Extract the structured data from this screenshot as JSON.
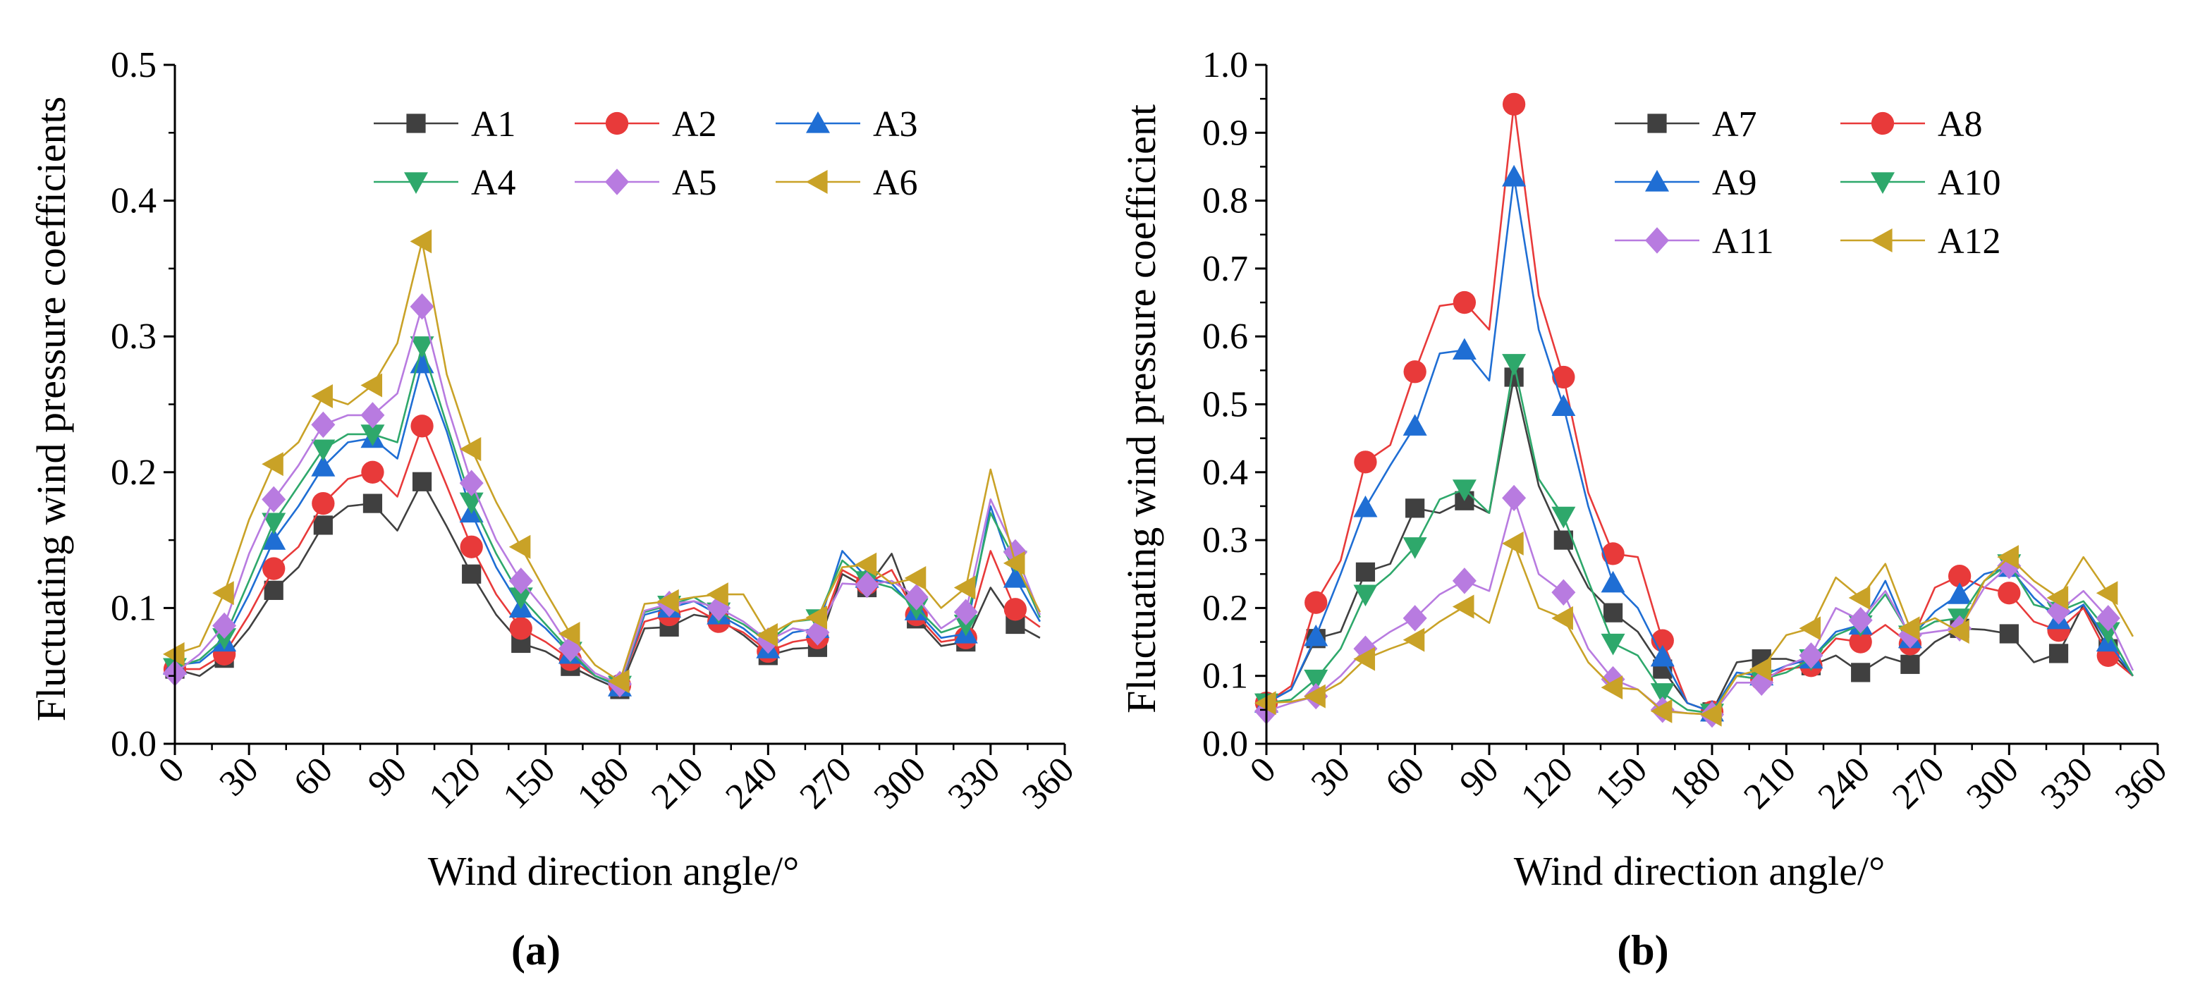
{
  "chart_data": [
    {
      "type": "line",
      "panel_label": "(a)",
      "xlabel": "Wind direction angle/°",
      "ylabel": "Fluctuating wind pressure coefficients",
      "xlim": [
        0,
        360
      ],
      "ylim": [
        0,
        0.5
      ],
      "xticks": [
        0,
        30,
        60,
        90,
        120,
        150,
        180,
        210,
        240,
        270,
        300,
        330,
        360
      ],
      "xtick_labels": [
        "0",
        "30",
        "60",
        "90",
        "120",
        "150",
        "180",
        "210",
        "240",
        "270",
        "300",
        "330",
        "360"
      ],
      "yticks": [
        0.0,
        0.1,
        0.2,
        0.3,
        0.4,
        0.5
      ],
      "ytick_labels": [
        "0.0",
        "0.1",
        "0.2",
        "0.3",
        "0.4",
        "0.5"
      ],
      "x": [
        0,
        10,
        20,
        30,
        40,
        50,
        60,
        70,
        80,
        90,
        100,
        110,
        120,
        130,
        140,
        150,
        160,
        170,
        180,
        190,
        200,
        210,
        220,
        230,
        240,
        250,
        260,
        270,
        280,
        290,
        300,
        310,
        320,
        330,
        340,
        350
      ],
      "marker_every": 2,
      "legend": {
        "placement": "top-right",
        "columns": 3
      },
      "series": [
        {
          "name": "A1",
          "color": "#404040",
          "marker": "square",
          "values": [
            0.055,
            0.05,
            0.063,
            0.085,
            0.113,
            0.13,
            0.161,
            0.175,
            0.177,
            0.157,
            0.193,
            0.16,
            0.125,
            0.095,
            0.074,
            0.068,
            0.057,
            0.048,
            0.04,
            0.085,
            0.086,
            0.095,
            0.092,
            0.08,
            0.065,
            0.07,
            0.071,
            0.125,
            0.115,
            0.14,
            0.092,
            0.072,
            0.075,
            0.115,
            0.088,
            0.078
          ]
        },
        {
          "name": "A2",
          "color": "#e83a3a",
          "marker": "circle",
          "values": [
            0.055,
            0.055,
            0.066,
            0.095,
            0.129,
            0.145,
            0.177,
            0.195,
            0.2,
            0.182,
            0.234,
            0.19,
            0.145,
            0.11,
            0.085,
            0.075,
            0.062,
            0.05,
            0.043,
            0.09,
            0.095,
            0.1,
            0.09,
            0.082,
            0.068,
            0.075,
            0.078,
            0.128,
            0.118,
            0.128,
            0.095,
            0.075,
            0.078,
            0.142,
            0.099,
            0.086
          ]
        },
        {
          "name": "A3",
          "color": "#1f6ed4",
          "marker": "triangle-up",
          "values": [
            0.058,
            0.06,
            0.075,
            0.11,
            0.15,
            0.175,
            0.204,
            0.222,
            0.225,
            0.21,
            0.28,
            0.23,
            0.17,
            0.13,
            0.1,
            0.085,
            0.066,
            0.05,
            0.042,
            0.095,
            0.1,
            0.105,
            0.095,
            0.085,
            0.07,
            0.082,
            0.085,
            0.142,
            0.122,
            0.118,
            0.098,
            0.078,
            0.081,
            0.175,
            0.122,
            0.09
          ]
        },
        {
          "name": "A4",
          "color": "#2ea86b",
          "marker": "triangle-down",
          "values": [
            0.056,
            0.062,
            0.078,
            0.12,
            0.163,
            0.19,
            0.217,
            0.228,
            0.228,
            0.222,
            0.293,
            0.235,
            0.178,
            0.14,
            0.108,
            0.088,
            0.068,
            0.05,
            0.043,
            0.097,
            0.102,
            0.108,
            0.097,
            0.088,
            0.075,
            0.09,
            0.092,
            0.135,
            0.12,
            0.115,
            0.1,
            0.082,
            0.088,
            0.17,
            0.135,
            0.093
          ]
        },
        {
          "name": "A5",
          "color": "#b87be0",
          "marker": "diamond",
          "values": [
            0.052,
            0.066,
            0.087,
            0.14,
            0.18,
            0.205,
            0.235,
            0.242,
            0.242,
            0.258,
            0.322,
            0.25,
            0.192,
            0.15,
            0.12,
            0.098,
            0.07,
            0.052,
            0.044,
            0.098,
            0.103,
            0.105,
            0.1,
            0.09,
            0.076,
            0.085,
            0.082,
            0.118,
            0.117,
            0.12,
            0.108,
            0.085,
            0.097,
            0.18,
            0.141,
            0.095
          ]
        },
        {
          "name": "A6",
          "color": "#c9a227",
          "marker": "triangle-left",
          "values": [
            0.066,
            0.072,
            0.111,
            0.165,
            0.206,
            0.222,
            0.256,
            0.25,
            0.264,
            0.295,
            0.37,
            0.272,
            0.217,
            0.178,
            0.145,
            0.112,
            0.081,
            0.058,
            0.046,
            0.103,
            0.105,
            0.108,
            0.11,
            0.11,
            0.08,
            0.09,
            0.093,
            0.13,
            0.132,
            0.118,
            0.122,
            0.1,
            0.115,
            0.202,
            0.133,
            0.097
          ]
        }
      ]
    },
    {
      "type": "line",
      "panel_label": "(b)",
      "xlabel": "Wind direction angle/°",
      "ylabel": "Fluctuating wind pressure coefficient",
      "xlim": [
        0,
        360
      ],
      "ylim": [
        0,
        1.0
      ],
      "xticks": [
        0,
        30,
        60,
        90,
        120,
        150,
        180,
        210,
        240,
        270,
        300,
        330,
        360
      ],
      "xtick_labels": [
        "0",
        "30",
        "60",
        "90",
        "120",
        "150",
        "180",
        "210",
        "240",
        "270",
        "300",
        "330",
        "360"
      ],
      "yticks": [
        0.0,
        0.1,
        0.2,
        0.3,
        0.4,
        0.5,
        0.6,
        0.7,
        0.8,
        0.9,
        1.0
      ],
      "ytick_labels": [
        "0.0",
        "0.1",
        "0.2",
        "0.3",
        "0.4",
        "0.5",
        "0.6",
        "0.7",
        "0.8",
        "0.9",
        "1.0"
      ],
      "x": [
        0,
        10,
        20,
        30,
        40,
        50,
        60,
        70,
        80,
        90,
        100,
        110,
        120,
        130,
        140,
        150,
        160,
        170,
        180,
        190,
        200,
        210,
        220,
        230,
        240,
        250,
        260,
        270,
        280,
        290,
        300,
        310,
        320,
        330,
        340,
        350
      ],
      "marker_every": 2,
      "legend": {
        "placement": "top-right",
        "columns": 2
      },
      "series": [
        {
          "name": "A7",
          "color": "#404040",
          "marker": "square",
          "values": [
            0.06,
            0.08,
            0.155,
            0.165,
            0.253,
            0.265,
            0.347,
            0.34,
            0.358,
            0.34,
            0.54,
            0.38,
            0.3,
            0.23,
            0.193,
            0.165,
            0.11,
            0.06,
            0.047,
            0.12,
            0.125,
            0.125,
            0.115,
            0.13,
            0.105,
            0.128,
            0.117,
            0.15,
            0.17,
            0.168,
            0.162,
            0.12,
            0.133,
            0.205,
            0.14,
            0.1
          ]
        },
        {
          "name": "A8",
          "color": "#e83a3a",
          "marker": "circle",
          "values": [
            0.06,
            0.085,
            0.208,
            0.27,
            0.415,
            0.44,
            0.548,
            0.645,
            0.65,
            0.61,
            0.942,
            0.66,
            0.54,
            0.37,
            0.28,
            0.275,
            0.152,
            0.06,
            0.047,
            0.1,
            0.095,
            0.11,
            0.115,
            0.155,
            0.15,
            0.175,
            0.147,
            0.23,
            0.247,
            0.23,
            0.222,
            0.18,
            0.167,
            0.2,
            0.13,
            0.1
          ]
        },
        {
          "name": "A9",
          "color": "#1f6ed4",
          "marker": "triangle-up",
          "values": [
            0.06,
            0.08,
            0.158,
            0.25,
            0.348,
            0.41,
            0.468,
            0.575,
            0.58,
            0.535,
            0.835,
            0.61,
            0.497,
            0.35,
            0.237,
            0.2,
            0.128,
            0.06,
            0.047,
            0.105,
            0.1,
            0.115,
            0.125,
            0.165,
            0.175,
            0.24,
            0.155,
            0.195,
            0.22,
            0.25,
            0.26,
            0.215,
            0.183,
            0.205,
            0.15,
            0.1
          ]
        },
        {
          "name": "A10",
          "color": "#2ea86b",
          "marker": "triangle-down",
          "values": [
            0.06,
            0.065,
            0.095,
            0.14,
            0.22,
            0.25,
            0.29,
            0.36,
            0.375,
            0.34,
            0.56,
            0.39,
            0.335,
            0.24,
            0.148,
            0.13,
            0.075,
            0.05,
            0.045,
            0.1,
            0.095,
            0.105,
            0.125,
            0.16,
            0.175,
            0.22,
            0.16,
            0.18,
            0.185,
            0.24,
            0.265,
            0.205,
            0.195,
            0.21,
            0.165,
            0.1
          ]
        },
        {
          "name": "A11",
          "color": "#b87be0",
          "marker": "diamond",
          "values": [
            0.048,
            0.06,
            0.07,
            0.1,
            0.14,
            0.165,
            0.185,
            0.22,
            0.24,
            0.225,
            0.362,
            0.25,
            0.223,
            0.14,
            0.095,
            0.08,
            0.05,
            0.045,
            0.043,
            0.09,
            0.09,
            0.115,
            0.13,
            0.2,
            0.182,
            0.225,
            0.16,
            0.165,
            0.17,
            0.23,
            0.262,
            0.23,
            0.195,
            0.225,
            0.185,
            0.108
          ]
        },
        {
          "name": "A12",
          "color": "#c9a227",
          "marker": "triangle-left",
          "values": [
            0.06,
            0.062,
            0.07,
            0.09,
            0.125,
            0.14,
            0.153,
            0.18,
            0.202,
            0.178,
            0.295,
            0.2,
            0.185,
            0.12,
            0.083,
            0.08,
            0.048,
            0.045,
            0.043,
            0.1,
            0.11,
            0.16,
            0.17,
            0.245,
            0.215,
            0.265,
            0.17,
            0.185,
            0.165,
            0.24,
            0.275,
            0.24,
            0.215,
            0.275,
            0.222,
            0.158
          ]
        }
      ]
    }
  ]
}
